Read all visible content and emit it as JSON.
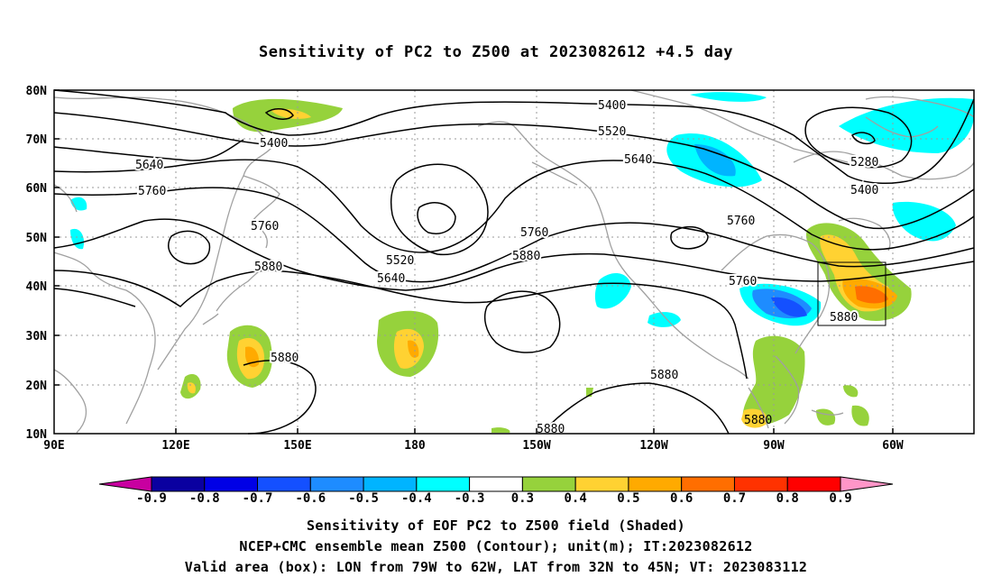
{
  "title": "Sensitivity of PC2 to Z500 at 2023082612 +4.5 day",
  "lat_labels": [
    "80N",
    "70N",
    "60N",
    "50N",
    "40N",
    "30N",
    "20N",
    "10N"
  ],
  "lon_labels": [
    "90E",
    "120E",
    "150E",
    "180",
    "150W",
    "120W",
    "90W",
    "60W"
  ],
  "contour_labels": [
    "5400",
    "5400",
    "5520",
    "5640",
    "5640",
    "5280",
    "5400",
    "5760",
    "5760",
    "5760",
    "5880",
    "5760",
    "5520",
    "5640",
    "5880",
    "5760",
    "5880",
    "5880",
    "5880",
    "5880",
    "5880"
  ],
  "colorbar": {
    "labels": [
      "-0.9",
      "-0.8",
      "-0.7",
      "-0.6",
      "-0.5",
      "-0.4",
      "-0.3",
      "0.3",
      "0.4",
      "0.5",
      "0.6",
      "0.7",
      "0.8",
      "0.9"
    ],
    "colors": [
      "#0a00a0",
      "#0000e6",
      "#1450ff",
      "#1e8cff",
      "#00b4ff",
      "#00ffff",
      "#ffffff",
      "#96d23c",
      "#ffd232",
      "#ffaa00",
      "#ff6e00",
      "#ff3200",
      "#ff0000"
    ],
    "low_end": "#c800a0",
    "high_end": "#ff96c8"
  },
  "footer": {
    "line1": "Sensitivity of EOF PC2 to Z500 field (Shaded)",
    "line2": "NCEP+CMC ensemble mean Z500 (Contour); unit(m); IT:2023082612",
    "line3": "Valid area (box): LON from 79W to 62W, LAT from 32N to 45N; VT: 2023083112"
  }
}
